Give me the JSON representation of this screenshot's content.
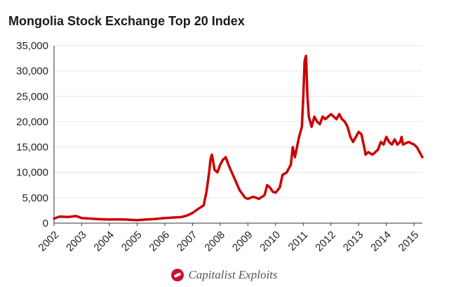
{
  "chart_data": {
    "type": "line",
    "title": "Mongolia Stock Exchange Top 20 Index",
    "xlabel": "",
    "ylabel": "",
    "xlim": [
      2002,
      2015.3
    ],
    "ylim": [
      0,
      35000
    ],
    "grid": true,
    "legend": "none",
    "y_ticks": [
      0,
      5000,
      10000,
      15000,
      20000,
      25000,
      30000,
      35000
    ],
    "y_tick_labels": [
      "0",
      "5,000",
      "10,000",
      "15,000",
      "20,000",
      "25,000",
      "30,000",
      "35,000"
    ],
    "x_ticks": [
      2002,
      2003,
      2004,
      2005,
      2006,
      2007,
      2008,
      2009,
      2010,
      2011,
      2012,
      2013,
      2014,
      2015
    ],
    "x_tick_labels": [
      "2002",
      "2003",
      "2004",
      "2005",
      "2006",
      "2007",
      "2008",
      "2009",
      "2010",
      "2011",
      "2012",
      "2013",
      "2014",
      "2015"
    ],
    "series": [
      {
        "color": "#cc0000",
        "x": [
          2002.0,
          2002.2,
          2002.5,
          2002.8,
          2003.0,
          2003.3,
          2003.6,
          2004.0,
          2004.3,
          2004.6,
          2005.0,
          2005.3,
          2005.6,
          2006.0,
          2006.3,
          2006.6,
          2006.8,
          2007.0,
          2007.2,
          2007.4,
          2007.5,
          2007.6,
          2007.65,
          2007.7,
          2007.8,
          2007.9,
          2008.0,
          2008.1,
          2008.2,
          2008.3,
          2008.5,
          2008.7,
          2008.9,
          2009.0,
          2009.2,
          2009.4,
          2009.6,
          2009.7,
          2009.8,
          2009.9,
          2010.0,
          2010.15,
          2010.25,
          2010.4,
          2010.55,
          2010.62,
          2010.7,
          2010.85,
          2010.95,
          2011.0,
          2011.05,
          2011.1,
          2011.15,
          2011.2,
          2011.3,
          2011.4,
          2011.5,
          2011.6,
          2011.7,
          2011.8,
          2011.9,
          2012.0,
          2012.1,
          2012.2,
          2012.3,
          2012.4,
          2012.5,
          2012.6,
          2012.7,
          2012.8,
          2012.9,
          2013.0,
          2013.1,
          2013.2,
          2013.25,
          2013.35,
          2013.5,
          2013.7,
          2013.8,
          2013.9,
          2014.0,
          2014.1,
          2014.2,
          2014.3,
          2014.4,
          2014.5,
          2014.55,
          2014.6,
          2014.8,
          2015.0,
          2015.1,
          2015.2,
          2015.3
        ],
        "y": [
          900,
          1300,
          1200,
          1400,
          1000,
          900,
          800,
          700,
          750,
          700,
          600,
          700,
          800,
          1000,
          1100,
          1200,
          1500,
          2000,
          2800,
          3500,
          6000,
          10000,
          12500,
          13500,
          10500,
          10000,
          11500,
          12500,
          13000,
          11500,
          9000,
          6500,
          5000,
          4800,
          5200,
          4800,
          5500,
          7500,
          7000,
          6200,
          6000,
          7000,
          9500,
          10000,
          11500,
          15000,
          13000,
          17000,
          19000,
          25000,
          32000,
          33000,
          25000,
          21000,
          19000,
          21000,
          20000,
          19500,
          21000,
          20500,
          21000,
          21500,
          21000,
          20500,
          21500,
          20500,
          20000,
          19000,
          17000,
          16000,
          17000,
          18000,
          17500,
          15000,
          13500,
          14000,
          13500,
          14500,
          16000,
          15500,
          17000,
          16000,
          15500,
          16500,
          15500,
          16000,
          17000,
          15500,
          16000,
          15500,
          15000,
          14000,
          13000
        ]
      }
    ]
  },
  "footer": {
    "brand": "Capitalist Exploits",
    "logo_icon": "capitalist-exploits-logo-icon"
  }
}
